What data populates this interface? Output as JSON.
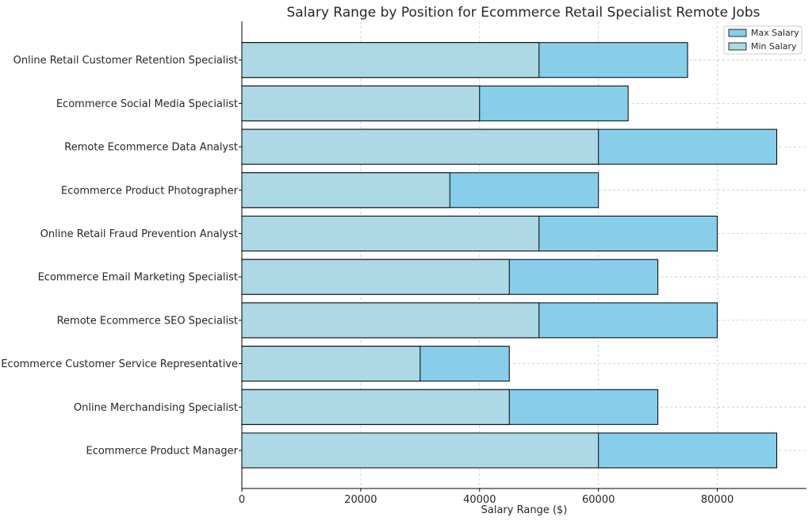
{
  "chart_data": {
    "type": "bar",
    "orientation": "horizontal",
    "stacked": false,
    "title": "Salary Range by Position for Ecommerce Retail Specialist Remote Jobs",
    "xlabel": "Salary Range ($)",
    "ylabel": "",
    "xlim": [
      0,
      95000
    ],
    "xticks": [
      0,
      20000,
      40000,
      60000,
      80000
    ],
    "xtick_labels": [
      "0",
      "20000",
      "40000",
      "60000",
      "80000"
    ],
    "grid": true,
    "legend_position": "top-right",
    "categories": [
      "Ecommerce Product Manager",
      "Online Merchandising Specialist",
      "Ecommerce Customer Service Representative",
      "Remote Ecommerce SEO Specialist",
      "Ecommerce Email Marketing Specialist",
      "Online Retail Fraud Prevention Analyst",
      "Ecommerce Product Photographer",
      "Remote Ecommerce Data Analyst",
      "Ecommerce Social Media Specialist",
      "Online Retail Customer Retention Specialist"
    ],
    "series": [
      {
        "name": "Max Salary",
        "color": "#87ceeb",
        "values": [
          90000,
          70000,
          45000,
          80000,
          70000,
          80000,
          60000,
          90000,
          65000,
          75000
        ]
      },
      {
        "name": "Min Salary",
        "color": "#add8e6",
        "values": [
          60000,
          45000,
          30000,
          50000,
          45000,
          50000,
          35000,
          60000,
          40000,
          50000
        ]
      }
    ]
  }
}
